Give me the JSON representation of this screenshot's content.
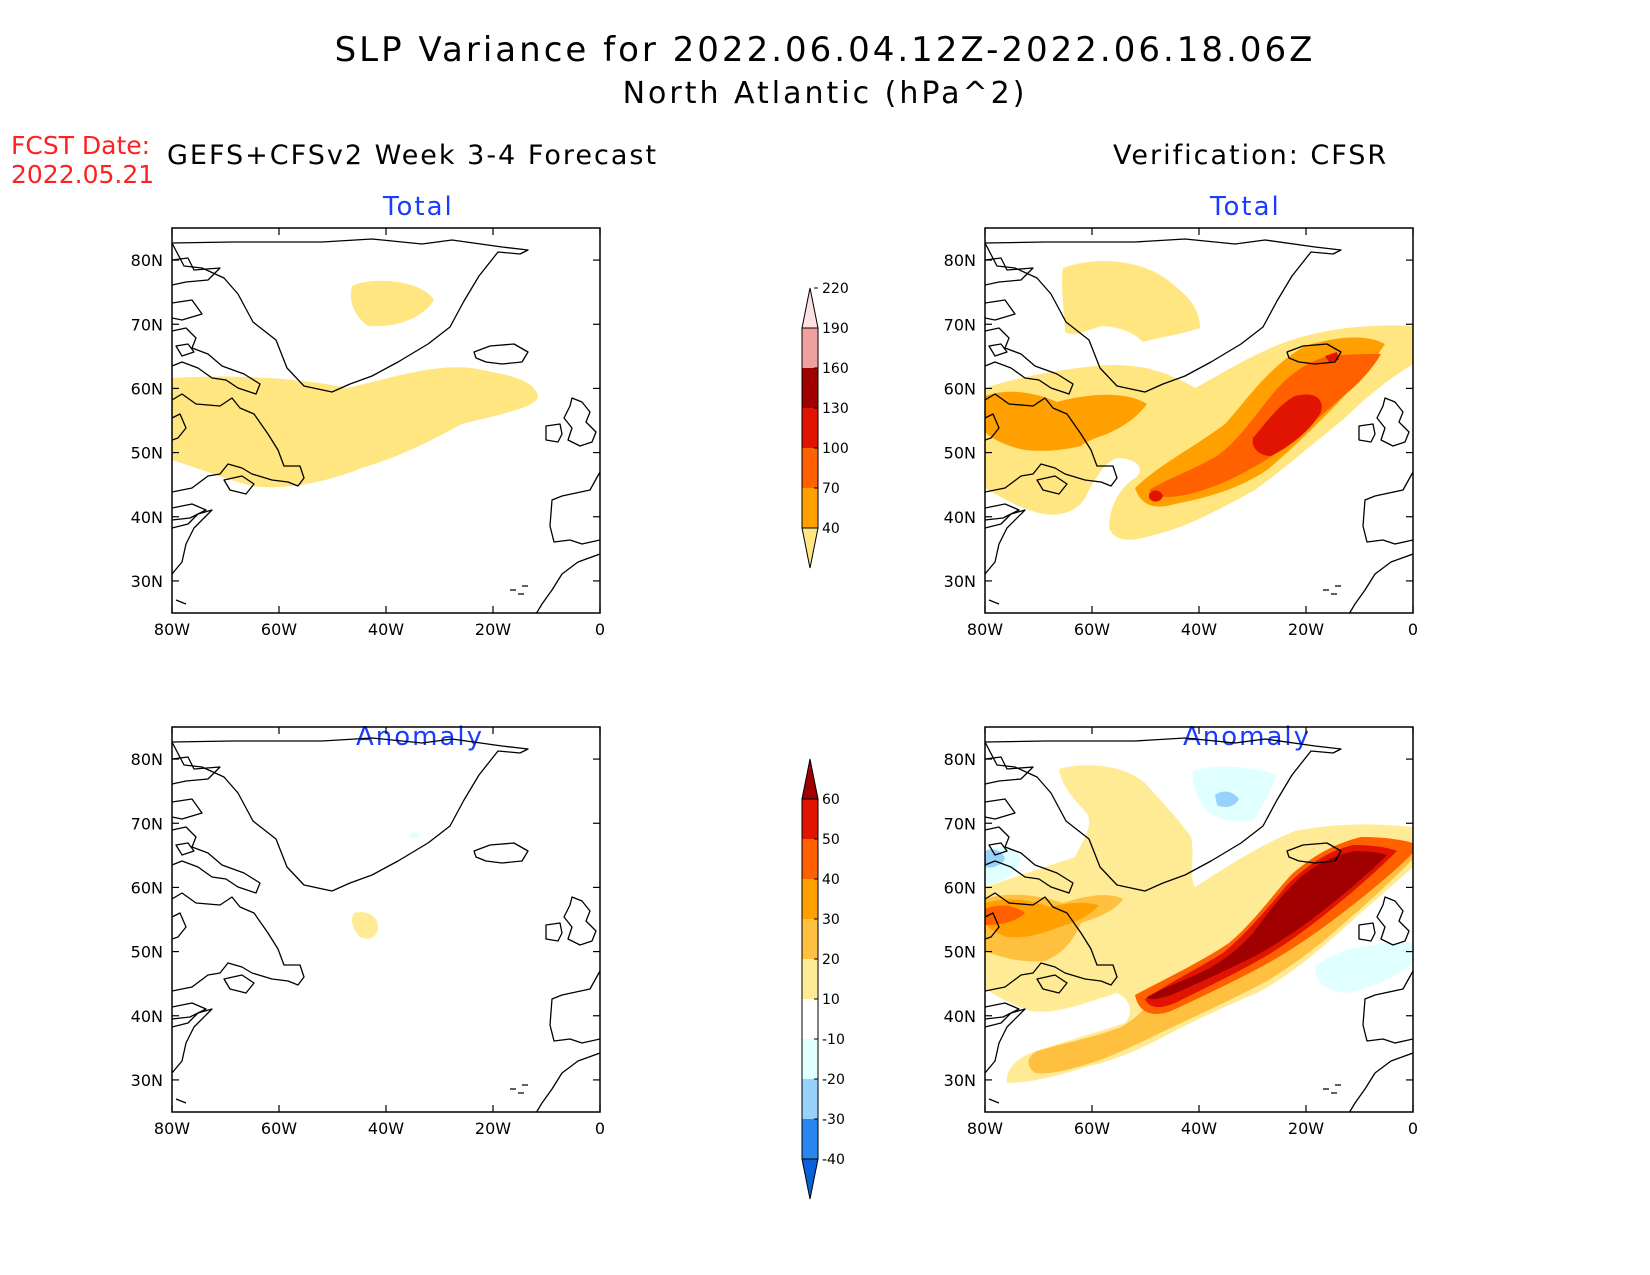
{
  "title": {
    "line1": "SLP Variance for 2022.06.04.12Z-2022.06.18.06Z",
    "line2": "North Atlantic (hPa^2)"
  },
  "forecast_date": {
    "label": "FCST Date:",
    "value": "2022.05.21"
  },
  "columns": {
    "left_header": "GEFS+CFSv2 Week 3-4 Forecast",
    "right_header": "Verification: CFSR"
  },
  "panel_titles": {
    "total": "Total",
    "anomaly": "Anomaly"
  },
  "map": {
    "lat_ticks": [
      "80N",
      "70N",
      "60N",
      "50N",
      "40N",
      "30N"
    ],
    "lon_ticks": [
      "80W",
      "60W",
      "40W",
      "20W",
      "0"
    ],
    "lon_range": [
      -80,
      0
    ],
    "lat_range": [
      25,
      85
    ]
  },
  "colorbars": {
    "total": {
      "levels": [
        "40",
        "70",
        "100",
        "130",
        "160",
        "190",
        "220"
      ],
      "colors": [
        "#ffe680",
        "#ffa000",
        "#ff6000",
        "#e01400",
        "#a00000",
        "#f0a0a0",
        "#ffe0e0"
      ]
    },
    "anomaly": {
      "levels": [
        "-40",
        "-30",
        "-20",
        "-10",
        "10",
        "20",
        "30",
        "40",
        "50",
        "60"
      ],
      "colors": [
        "#0a60d8",
        "#2886f0",
        "#96d2fa",
        "#e0ffff",
        "#ffffff",
        "#ffeb96",
        "#ffc040",
        "#ffa000",
        "#ff6000",
        "#e01400",
        "#a00000"
      ]
    }
  }
}
